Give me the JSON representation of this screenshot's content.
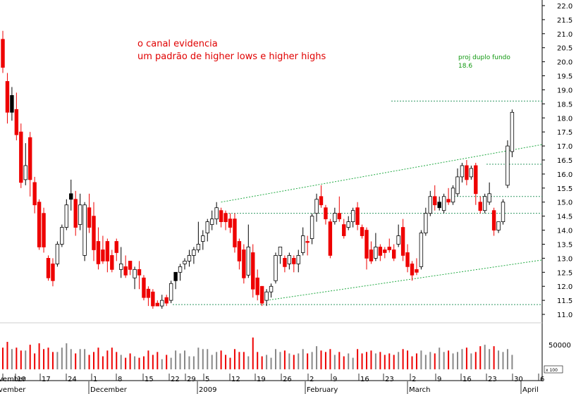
{
  "chart_data": {
    "type": "candlestick",
    "annotation": {
      "line1": "o canal evidencia",
      "line2": "um padrão de higher lows e higher highs"
    },
    "projection": {
      "label": "proj duplo fundo",
      "value_label": "18.6",
      "value": 18.6
    },
    "y_axis": {
      "range": [
        10.7,
        22.2
      ],
      "ticks": [
        "11.0",
        "11.5",
        "12.0",
        "12.5",
        "13.0",
        "13.5",
        "14.0",
        "14.5",
        "15.0",
        "15.5",
        "16.0",
        "16.5",
        "17.0",
        "17.5",
        "18.0",
        "18.5",
        "19.0",
        "19.5",
        "20.0",
        "20.5",
        "21.0",
        "21.5",
        "22.0"
      ],
      "tick_values": [
        11.0,
        11.5,
        12.0,
        12.5,
        13.0,
        13.5,
        14.0,
        14.5,
        15.0,
        15.5,
        16.0,
        16.5,
        17.0,
        17.5,
        18.0,
        18.5,
        19.0,
        19.5,
        20.0,
        20.5,
        21.0,
        21.5,
        22.0
      ]
    },
    "volume_axis": {
      "label": "50000",
      "scale_label": "x 100"
    },
    "date_labels": [
      "vember",
      "10",
      "17",
      "24",
      "1",
      "8",
      "15",
      "22",
      "29",
      "5",
      "12",
      "19",
      "26",
      "2",
      "9",
      "16",
      "23",
      "2",
      "9",
      "16",
      "23",
      "30",
      "6"
    ],
    "month_labels": [
      "December",
      "2009",
      "February",
      "March",
      "April"
    ],
    "horizontal_levels": [
      18.6,
      16.35,
      15.2,
      14.6,
      11.35
    ],
    "channel": {
      "upper": {
        "start": [
          48,
          15.0
        ],
        "end": [
          110,
          16.8
        ]
      },
      "lower": {
        "start": [
          58,
          11.5
        ],
        "end": [
          117,
          12.9
        ]
      }
    },
    "candles": [
      {
        "o": 20.8,
        "h": 21.1,
        "c": 19.8,
        "l": 19.6,
        "col": "red"
      },
      {
        "o": 19.3,
        "h": 19.6,
        "c": 18.2,
        "l": 17.8,
        "col": "red"
      },
      {
        "o": 18.2,
        "h": 19.1,
        "c": 18.8,
        "l": 17.9,
        "col": "black"
      },
      {
        "o": 18.3,
        "h": 18.9,
        "c": 17.4,
        "l": 17.2,
        "col": "red"
      },
      {
        "o": 17.5,
        "h": 17.8,
        "c": 15.7,
        "l": 15.5,
        "col": "red"
      },
      {
        "o": 15.8,
        "h": 17.1,
        "c": 16.3,
        "l": 15.6,
        "col": "white"
      },
      {
        "o": 17.3,
        "h": 17.5,
        "c": 15.8,
        "l": 15.2,
        "col": "red"
      },
      {
        "o": 15.7,
        "h": 15.9,
        "c": 14.9,
        "l": 14.6,
        "col": "red"
      },
      {
        "o": 15.0,
        "h": 15.1,
        "c": 13.4,
        "l": 13.3,
        "col": "red"
      },
      {
        "o": 14.6,
        "h": 14.8,
        "c": 13.4,
        "l": 13.2,
        "col": "red"
      },
      {
        "o": 13.0,
        "h": 13.1,
        "c": 12.3,
        "l": 12.2,
        "col": "red"
      },
      {
        "o": 12.8,
        "h": 13.0,
        "c": 12.2,
        "l": 12.0,
        "col": "red"
      },
      {
        "o": 12.8,
        "h": 13.6,
        "c": 13.5,
        "l": 12.7,
        "col": "white"
      },
      {
        "o": 13.5,
        "h": 14.2,
        "c": 14.1,
        "l": 13.4,
        "col": "white"
      },
      {
        "o": 14.1,
        "h": 15.1,
        "c": 14.9,
        "l": 14.0,
        "col": "white"
      },
      {
        "o": 15.3,
        "h": 15.8,
        "c": 15.1,
        "l": 14.7,
        "col": "black"
      },
      {
        "o": 15.1,
        "h": 15.4,
        "c": 14.1,
        "l": 13.8,
        "col": "red"
      },
      {
        "o": 14.2,
        "h": 15.3,
        "c": 14.9,
        "l": 14.0,
        "col": "white"
      },
      {
        "o": 14.9,
        "h": 15.0,
        "c": 13.1,
        "l": 12.9,
        "col": "white"
      },
      {
        "o": 14.8,
        "h": 15.3,
        "c": 14.1,
        "l": 13.9,
        "col": "red"
      },
      {
        "o": 14.5,
        "h": 15.0,
        "c": 13.3,
        "l": 12.9,
        "col": "red"
      },
      {
        "o": 13.6,
        "h": 14.1,
        "c": 12.8,
        "l": 12.6,
        "col": "red"
      },
      {
        "o": 13.3,
        "h": 13.8,
        "c": 12.9,
        "l": 12.8,
        "col": "red"
      },
      {
        "o": 13.6,
        "h": 13.7,
        "c": 12.9,
        "l": 12.5,
        "col": "red"
      },
      {
        "o": 13.1,
        "h": 13.3,
        "c": 12.6,
        "l": 12.5,
        "col": "red"
      },
      {
        "o": 13.6,
        "h": 13.7,
        "c": 13.2,
        "l": 12.9,
        "col": "red"
      },
      {
        "o": 12.6,
        "h": 13.4,
        "c": 12.8,
        "l": 12.3,
        "col": "white"
      },
      {
        "o": 12.7,
        "h": 13.1,
        "c": 12.4,
        "l": 12.3,
        "col": "red"
      },
      {
        "o": 12.9,
        "h": 12.9,
        "c": 12.6,
        "l": 12.4,
        "col": "red"
      },
      {
        "o": 12.3,
        "h": 12.7,
        "c": 12.6,
        "l": 11.9,
        "col": "white"
      },
      {
        "o": 12.6,
        "h": 12.9,
        "c": 12.4,
        "l": 11.9,
        "col": "red"
      },
      {
        "o": 12.3,
        "h": 12.4,
        "c": 11.6,
        "l": 11.5,
        "col": "red"
      },
      {
        "o": 11.9,
        "h": 12.0,
        "c": 11.6,
        "l": 11.3,
        "col": "red"
      },
      {
        "o": 11.8,
        "h": 11.9,
        "c": 11.3,
        "l": 11.2,
        "col": "red"
      },
      {
        "o": 11.4,
        "h": 11.5,
        "c": 11.3,
        "l": 11.3,
        "col": "red"
      },
      {
        "o": 11.3,
        "h": 11.7,
        "c": 11.5,
        "l": 11.2,
        "col": "white"
      },
      {
        "o": 11.6,
        "h": 11.7,
        "c": 11.4,
        "l": 11.3,
        "col": "red"
      },
      {
        "o": 11.5,
        "h": 12.2,
        "c": 12.1,
        "l": 11.4,
        "col": "white"
      },
      {
        "o": 12.2,
        "h": 12.5,
        "c": 12.5,
        "l": 11.9,
        "col": "black"
      },
      {
        "o": 12.5,
        "h": 12.8,
        "c": 12.7,
        "l": 12.2,
        "col": "white"
      },
      {
        "o": 12.8,
        "h": 13.0,
        "c": 12.9,
        "l": 12.6,
        "col": "white"
      },
      {
        "o": 12.9,
        "h": 13.3,
        "c": 13.1,
        "l": 12.7,
        "col": "white"
      },
      {
        "o": 13.1,
        "h": 13.4,
        "c": 13.3,
        "l": 12.8,
        "col": "white"
      },
      {
        "o": 13.3,
        "h": 14.3,
        "c": 13.5,
        "l": 13.2,
        "col": "white"
      },
      {
        "o": 13.6,
        "h": 14.0,
        "c": 13.8,
        "l": 13.3,
        "col": "white"
      },
      {
        "o": 13.9,
        "h": 14.4,
        "c": 14.3,
        "l": 13.6,
        "col": "white"
      },
      {
        "o": 14.2,
        "h": 14.7,
        "c": 14.4,
        "l": 14.0,
        "col": "white"
      },
      {
        "o": 14.4,
        "h": 15.0,
        "c": 14.8,
        "l": 14.2,
        "col": "white"
      },
      {
        "o": 14.7,
        "h": 14.8,
        "c": 14.3,
        "l": 14.1,
        "col": "red"
      },
      {
        "o": 14.6,
        "h": 14.7,
        "c": 14.3,
        "l": 14.0,
        "col": "red"
      },
      {
        "o": 14.4,
        "h": 14.6,
        "c": 14.1,
        "l": 13.9,
        "col": "red"
      },
      {
        "o": 14.4,
        "h": 14.6,
        "c": 13.4,
        "l": 13.2,
        "col": "red"
      },
      {
        "o": 13.6,
        "h": 13.7,
        "c": 12.9,
        "l": 12.6,
        "col": "red"
      },
      {
        "o": 13.3,
        "h": 13.5,
        "c": 12.3,
        "l": 12.1,
        "col": "red"
      },
      {
        "o": 12.4,
        "h": 14.2,
        "c": 13.4,
        "l": 12.3,
        "col": "white"
      },
      {
        "o": 13.2,
        "h": 13.5,
        "c": 11.9,
        "l": 11.6,
        "col": "red"
      },
      {
        "o": 12.3,
        "h": 12.6,
        "c": 11.7,
        "l": 11.5,
        "col": "red"
      },
      {
        "o": 12.0,
        "h": 12.0,
        "c": 11.4,
        "l": 11.3,
        "col": "red"
      },
      {
        "o": 11.5,
        "h": 11.9,
        "c": 11.8,
        "l": 11.3,
        "col": "white"
      },
      {
        "o": 11.8,
        "h": 12.1,
        "c": 12.0,
        "l": 11.6,
        "col": "white"
      },
      {
        "o": 12.2,
        "h": 13.2,
        "c": 13.1,
        "l": 12.1,
        "col": "white"
      },
      {
        "o": 13.1,
        "h": 13.4,
        "c": 13.4,
        "l": 12.8,
        "col": "white"
      },
      {
        "o": 13.0,
        "h": 13.1,
        "c": 12.7,
        "l": 12.5,
        "col": "red"
      },
      {
        "o": 12.8,
        "h": 13.2,
        "c": 13.1,
        "l": 12.6,
        "col": "white"
      },
      {
        "o": 13.0,
        "h": 13.1,
        "c": 12.8,
        "l": 12.5,
        "col": "red"
      },
      {
        "o": 12.8,
        "h": 13.3,
        "c": 13.1,
        "l": 12.5,
        "col": "white"
      },
      {
        "o": 13.2,
        "h": 14.1,
        "c": 13.8,
        "l": 13.1,
        "col": "white"
      },
      {
        "o": 13.6,
        "h": 13.8,
        "c": 13.6,
        "l": 13.1,
        "col": "red"
      },
      {
        "o": 13.7,
        "h": 14.6,
        "c": 14.5,
        "l": 13.5,
        "col": "white"
      },
      {
        "o": 14.6,
        "h": 15.3,
        "c": 15.1,
        "l": 14.3,
        "col": "white"
      },
      {
        "o": 15.2,
        "h": 15.6,
        "c": 14.9,
        "l": 14.8,
        "col": "red"
      },
      {
        "o": 14.8,
        "h": 14.9,
        "c": 14.4,
        "l": 14.2,
        "col": "red"
      },
      {
        "o": 14.3,
        "h": 14.4,
        "c": 13.1,
        "l": 13.0,
        "col": "red"
      },
      {
        "o": 14.3,
        "h": 14.8,
        "c": 14.6,
        "l": 14.2,
        "col": "white"
      },
      {
        "o": 14.6,
        "h": 15.2,
        "c": 14.4,
        "l": 14.3,
        "col": "red"
      },
      {
        "o": 14.2,
        "h": 14.4,
        "c": 13.8,
        "l": 13.7,
        "col": "red"
      },
      {
        "o": 14.1,
        "h": 14.5,
        "c": 14.3,
        "l": 14.0,
        "col": "white"
      },
      {
        "o": 14.3,
        "h": 14.8,
        "c": 14.7,
        "l": 14.1,
        "col": "white"
      },
      {
        "o": 14.8,
        "h": 15.0,
        "c": 14.2,
        "l": 14.0,
        "col": "red"
      },
      {
        "o": 14.1,
        "h": 14.2,
        "c": 13.8,
        "l": 13.7,
        "col": "red"
      },
      {
        "o": 14.0,
        "h": 14.1,
        "c": 13.0,
        "l": 12.6,
        "col": "red"
      },
      {
        "o": 13.3,
        "h": 13.6,
        "c": 12.9,
        "l": 12.8,
        "col": "red"
      },
      {
        "o": 13.0,
        "h": 13.9,
        "c": 13.4,
        "l": 12.9,
        "col": "white"
      },
      {
        "o": 13.4,
        "h": 13.5,
        "c": 13.1,
        "l": 12.9,
        "col": "red"
      },
      {
        "o": 13.3,
        "h": 13.4,
        "c": 13.2,
        "l": 13.0,
        "col": "red"
      },
      {
        "o": 13.4,
        "h": 13.7,
        "c": 13.3,
        "l": 13.2,
        "col": "red"
      },
      {
        "o": 13.3,
        "h": 13.5,
        "c": 13.0,
        "l": 12.9,
        "col": "red"
      },
      {
        "o": 13.5,
        "h": 14.2,
        "c": 13.8,
        "l": 13.4,
        "col": "white"
      },
      {
        "o": 14.1,
        "h": 14.4,
        "c": 13.1,
        "l": 12.9,
        "col": "red"
      },
      {
        "o": 13.2,
        "h": 13.5,
        "c": 12.7,
        "l": 12.5,
        "col": "red"
      },
      {
        "o": 12.8,
        "h": 12.9,
        "c": 12.4,
        "l": 12.2,
        "col": "red"
      },
      {
        "o": 12.5,
        "h": 13.0,
        "c": 12.6,
        "l": 12.4,
        "col": "red"
      },
      {
        "o": 12.7,
        "h": 14.0,
        "c": 13.9,
        "l": 12.6,
        "col": "white"
      },
      {
        "o": 13.9,
        "h": 14.8,
        "c": 14.6,
        "l": 13.8,
        "col": "white"
      },
      {
        "o": 14.6,
        "h": 15.4,
        "c": 15.2,
        "l": 14.5,
        "col": "white"
      },
      {
        "o": 15.2,
        "h": 15.6,
        "c": 14.9,
        "l": 14.7,
        "col": "red"
      },
      {
        "o": 15.0,
        "h": 15.2,
        "c": 14.8,
        "l": 14.7,
        "col": "black"
      },
      {
        "o": 14.7,
        "h": 15.3,
        "c": 15.2,
        "l": 14.6,
        "col": "white"
      },
      {
        "o": 15.1,
        "h": 15.5,
        "c": 15.0,
        "l": 14.9,
        "col": "red"
      },
      {
        "o": 15.0,
        "h": 15.6,
        "c": 15.5,
        "l": 14.9,
        "col": "white"
      },
      {
        "o": 15.3,
        "h": 16.2,
        "c": 15.9,
        "l": 15.2,
        "col": "white"
      },
      {
        "o": 15.9,
        "h": 16.4,
        "c": 16.3,
        "l": 15.7,
        "col": "white"
      },
      {
        "o": 16.3,
        "h": 16.5,
        "c": 15.8,
        "l": 15.6,
        "col": "red"
      },
      {
        "o": 15.9,
        "h": 16.3,
        "c": 16.2,
        "l": 15.8,
        "col": "white"
      },
      {
        "o": 16.3,
        "h": 16.4,
        "c": 15.3,
        "l": 14.9,
        "col": "red"
      },
      {
        "o": 15.0,
        "h": 15.2,
        "c": 14.7,
        "l": 14.6,
        "col": "red"
      },
      {
        "o": 14.7,
        "h": 15.3,
        "c": 15.2,
        "l": 14.6,
        "col": "white"
      },
      {
        "o": 15.3,
        "h": 15.7,
        "c": 15.0,
        "l": 14.9,
        "col": "white"
      },
      {
        "o": 14.7,
        "h": 14.8,
        "c": 14.0,
        "l": 13.8,
        "col": "red"
      },
      {
        "o": 14.0,
        "h": 14.3,
        "c": 14.3,
        "l": 13.9,
        "col": "white"
      },
      {
        "o": 14.3,
        "h": 15.1,
        "c": 15.0,
        "l": 14.2,
        "col": "white"
      },
      {
        "o": 15.6,
        "h": 17.2,
        "c": 17.0,
        "l": 15.5,
        "col": "white"
      },
      {
        "o": 16.8,
        "h": 18.3,
        "c": 18.2,
        "l": 16.6,
        "col": "white"
      }
    ],
    "volumes": [
      30,
      38,
      28,
      30,
      26,
      26,
      34,
      22,
      36,
      28,
      30,
      24,
      24,
      30,
      36,
      28,
      22,
      28,
      28,
      20,
      24,
      30,
      18,
      26,
      30,
      24,
      20,
      16,
      22,
      18,
      16,
      18,
      26,
      20,
      24,
      14,
      20,
      16,
      26,
      22,
      26,
      18,
      18,
      30,
      28,
      28,
      20,
      24,
      26,
      20,
      16,
      28,
      24,
      24,
      18,
      44,
      24,
      18,
      20,
      16,
      28,
      24,
      26,
      22,
      20,
      22,
      28,
      22,
      24,
      32,
      26,
      24,
      28,
      20,
      24,
      18,
      22,
      16,
      28,
      22,
      24,
      26,
      22,
      24,
      20,
      22,
      20,
      24,
      28,
      26,
      18,
      22,
      26,
      20,
      24,
      22,
      30,
      24,
      26,
      22,
      24,
      28,
      30,
      22,
      24,
      32,
      34,
      28,
      32,
      26,
      24,
      28,
      20,
      32,
      30
    ],
    "volume_max": 50
  }
}
